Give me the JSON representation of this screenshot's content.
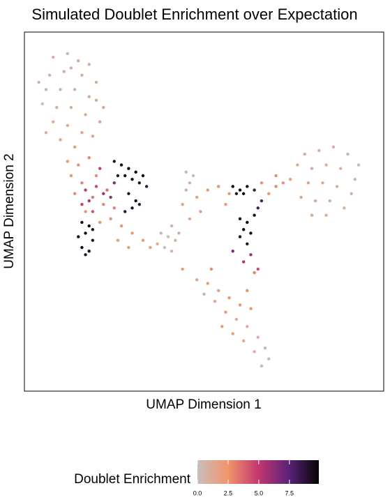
{
  "chart_data": {
    "type": "scatter",
    "title": "Simulated Doublet Enrichment over Expectation",
    "xlabel": "UMAP Dimension 1",
    "ylabel": "UMAP Dimension 2",
    "xlim": [
      0,
      100
    ],
    "ylim": [
      0,
      100
    ],
    "colorbar_title": "Doublet Enrichment",
    "clim": [
      0,
      9.9
    ],
    "cticks": [
      {
        "value": 0,
        "label": "0.0"
      },
      {
        "value": 2.5,
        "label": "2.5"
      },
      {
        "value": 5,
        "label": "5.0"
      },
      {
        "value": 7.5,
        "label": "7.5"
      }
    ],
    "colors": [
      "#c8bebb",
      "#f3956a",
      "#c2386d",
      "#5b2479",
      "#050505"
    ],
    "x": [
      8,
      12,
      15,
      7,
      11,
      16,
      20,
      6,
      10,
      14,
      18,
      22,
      5,
      9,
      13,
      17,
      21,
      8,
      12,
      16,
      19,
      10,
      14,
      6,
      20,
      4,
      13,
      18,
      12,
      15,
      18,
      13,
      16,
      20,
      14,
      19,
      22,
      17,
      24,
      27,
      30,
      33,
      26,
      29,
      35,
      21,
      25,
      23,
      17,
      18,
      16,
      20,
      22,
      19,
      24,
      21,
      25,
      25,
      27,
      29,
      31,
      33,
      28,
      30,
      32,
      26,
      34,
      29,
      31,
      28,
      30,
      32,
      16,
      18,
      17,
      15,
      19,
      16,
      18,
      17,
      19,
      38,
      40,
      42,
      39,
      41,
      43,
      37,
      41,
      45,
      47,
      46,
      45,
      44,
      48,
      51,
      54,
      57,
      49,
      46,
      56,
      66,
      70,
      68,
      58,
      60,
      62,
      61,
      59,
      64,
      60,
      62,
      64,
      61,
      63,
      60,
      62,
      65,
      66,
      63,
      61,
      65,
      58,
      78,
      82,
      86,
      90,
      93,
      76,
      80,
      84,
      88,
      92,
      74,
      79,
      83,
      87,
      91,
      77,
      81,
      85,
      89,
      84,
      80,
      72,
      70,
      48,
      51,
      54,
      50,
      53,
      57,
      56,
      60,
      63,
      62,
      64,
      59,
      62,
      65,
      67,
      68,
      64,
      66,
      58,
      55,
      61,
      44,
      52
    ],
    "y": [
      93,
      94,
      92,
      88,
      89,
      88,
      86,
      84,
      84,
      84,
      82,
      79,
      80,
      79,
      79,
      77,
      75,
      75,
      74,
      72,
      71,
      70,
      68,
      72,
      81,
      86,
      90,
      91,
      64,
      63,
      65,
      60,
      58,
      60,
      55,
      54,
      52,
      50,
      48,
      46,
      44,
      42,
      42,
      40,
      40,
      47,
      51,
      56,
      56,
      53,
      52,
      57,
      55,
      50,
      54,
      62,
      58,
      64,
      63,
      62,
      61,
      60,
      60,
      59,
      58,
      60,
      57,
      55,
      53,
      50,
      51,
      52,
      47,
      46,
      44,
      43,
      42,
      40,
      39,
      38,
      45,
      44,
      43,
      42,
      40,
      39,
      44,
      41,
      46,
      61,
      60,
      58,
      56,
      52,
      54,
      56,
      57,
      55,
      50,
      48,
      52,
      58,
      57,
      55,
      57,
      56,
      57,
      55,
      55,
      56,
      48,
      47,
      49,
      45,
      44,
      43,
      41,
      51,
      53,
      38,
      36,
      34,
      39,
      66,
      67,
      68,
      66,
      63,
      63,
      62,
      63,
      62,
      59,
      59,
      58,
      58,
      57,
      55,
      54,
      53,
      53,
      51,
      49,
      49,
      58,
      60,
      31,
      30,
      28,
      27,
      25,
      26,
      22,
      24,
      23,
      28,
      33,
      20,
      18,
      15,
      12,
      9,
      11,
      7,
      16,
      18,
      14,
      34,
      34
    ],
    "values": [
      0.8,
      0.6,
      1.0,
      0.7,
      0.9,
      1.1,
      1.2,
      0.6,
      0.8,
      1.0,
      1.3,
      1.5,
      0.5,
      0.9,
      1.1,
      1.4,
      1.6,
      1.0,
      1.2,
      1.6,
      1.8,
      1.4,
      2.0,
      0.9,
      1.2,
      0.6,
      0.9,
      1.0,
      2.4,
      2.6,
      2.8,
      2.5,
      3.0,
      2.7,
      2.8,
      3.3,
      2.9,
      2.6,
      2.7,
      2.5,
      2.4,
      2.3,
      2.2,
      2.1,
      2.0,
      2.6,
      3.1,
      3.5,
      5.0,
      5.5,
      4.8,
      4.5,
      5.8,
      4.2,
      6.2,
      4.8,
      6.5,
      9.0,
      9.5,
      9.8,
      9.7,
      9.4,
      9.2,
      9.6,
      9.1,
      8.8,
      8.5,
      8.9,
      9.3,
      8.7,
      9.0,
      8.6,
      9.2,
      9.5,
      9.7,
      9.3,
      9.0,
      9.6,
      9.4,
      8.8,
      9.1,
      0.6,
      0.4,
      0.7,
      0.5,
      0.8,
      0.9,
      1.2,
      0.6,
      0.6,
      0.5,
      0.8,
      1.0,
      1.8,
      2.2,
      2.5,
      2.6,
      2.3,
      2.0,
      1.5,
      2.4,
      2.6,
      2.9,
      2.5,
      9.5,
      9.8,
      9.2,
      9.6,
      9.0,
      8.4,
      9.1,
      9.7,
      9.3,
      9.8,
      9.5,
      9.0,
      8.9,
      8.0,
      7.8,
      6.0,
      5.2,
      4.5,
      6.5,
      1.0,
      0.9,
      0.7,
      0.6,
      0.5,
      1.3,
      1.2,
      1.0,
      0.8,
      0.6,
      2.0,
      1.6,
      1.3,
      1.0,
      0.7,
      1.8,
      1.5,
      1.2,
      0.9,
      1.1,
      1.4,
      2.6,
      2.8,
      1.5,
      2.2,
      1.8,
      1.0,
      1.4,
      2.5,
      2.1,
      2.6,
      2.4,
      2.7,
      3.0,
      1.3,
      1.0,
      0.8,
      0.6,
      0.5,
      0.9,
      0.4,
      1.9,
      2.3,
      1.2,
      2.3,
      2.8
    ]
  }
}
